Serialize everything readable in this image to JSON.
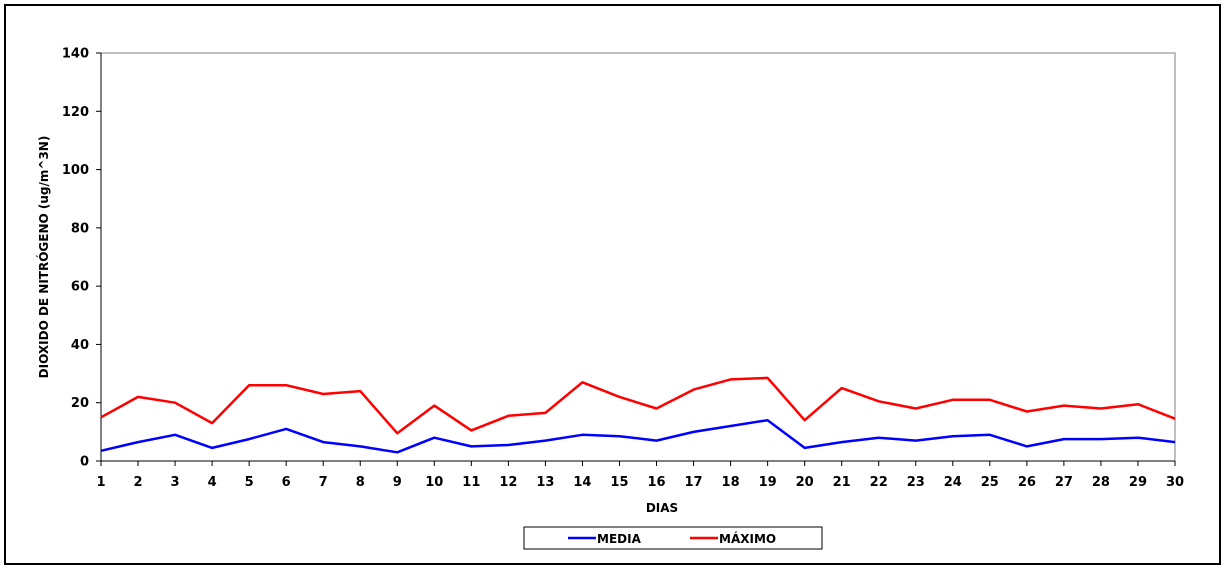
{
  "chart_data": {
    "type": "line",
    "title": "",
    "xlabel": "DIAS",
    "ylabel": "DIOXIDO DE NITRÓGENO  (ug/m^3N)",
    "ylim": [
      0,
      140
    ],
    "yticks": [
      0,
      20,
      40,
      60,
      80,
      100,
      120,
      140
    ],
    "categories": [
      "1",
      "2",
      "3",
      "4",
      "5",
      "6",
      "7",
      "8",
      "9",
      "10",
      "11",
      "12",
      "13",
      "14",
      "15",
      "16",
      "17",
      "18",
      "19",
      "20",
      "21",
      "22",
      "23",
      "24",
      "25",
      "26",
      "27",
      "28",
      "29",
      "30"
    ],
    "grid": false,
    "legend_position": "bottom",
    "series": [
      {
        "name": "MEDIA",
        "color": "#0000ff",
        "values": [
          3.5,
          6.5,
          9,
          4.5,
          7.5,
          11,
          6.5,
          5,
          3,
          8,
          5,
          5.5,
          7,
          9,
          8.5,
          7,
          10,
          12,
          14,
          4.5,
          6.5,
          8,
          7,
          8.5,
          9,
          5,
          7.5,
          7.5,
          8,
          6.5
        ]
      },
      {
        "name": "MÁXIMO",
        "color": "#ff0000",
        "values": [
          15,
          22,
          20,
          13,
          26,
          26,
          23,
          24,
          9.5,
          19,
          10.5,
          15.5,
          16.5,
          27,
          22,
          18,
          24.5,
          28,
          28.5,
          14,
          25,
          20.5,
          18,
          21,
          21,
          17,
          19,
          18,
          19.5,
          14.5
        ]
      }
    ]
  }
}
